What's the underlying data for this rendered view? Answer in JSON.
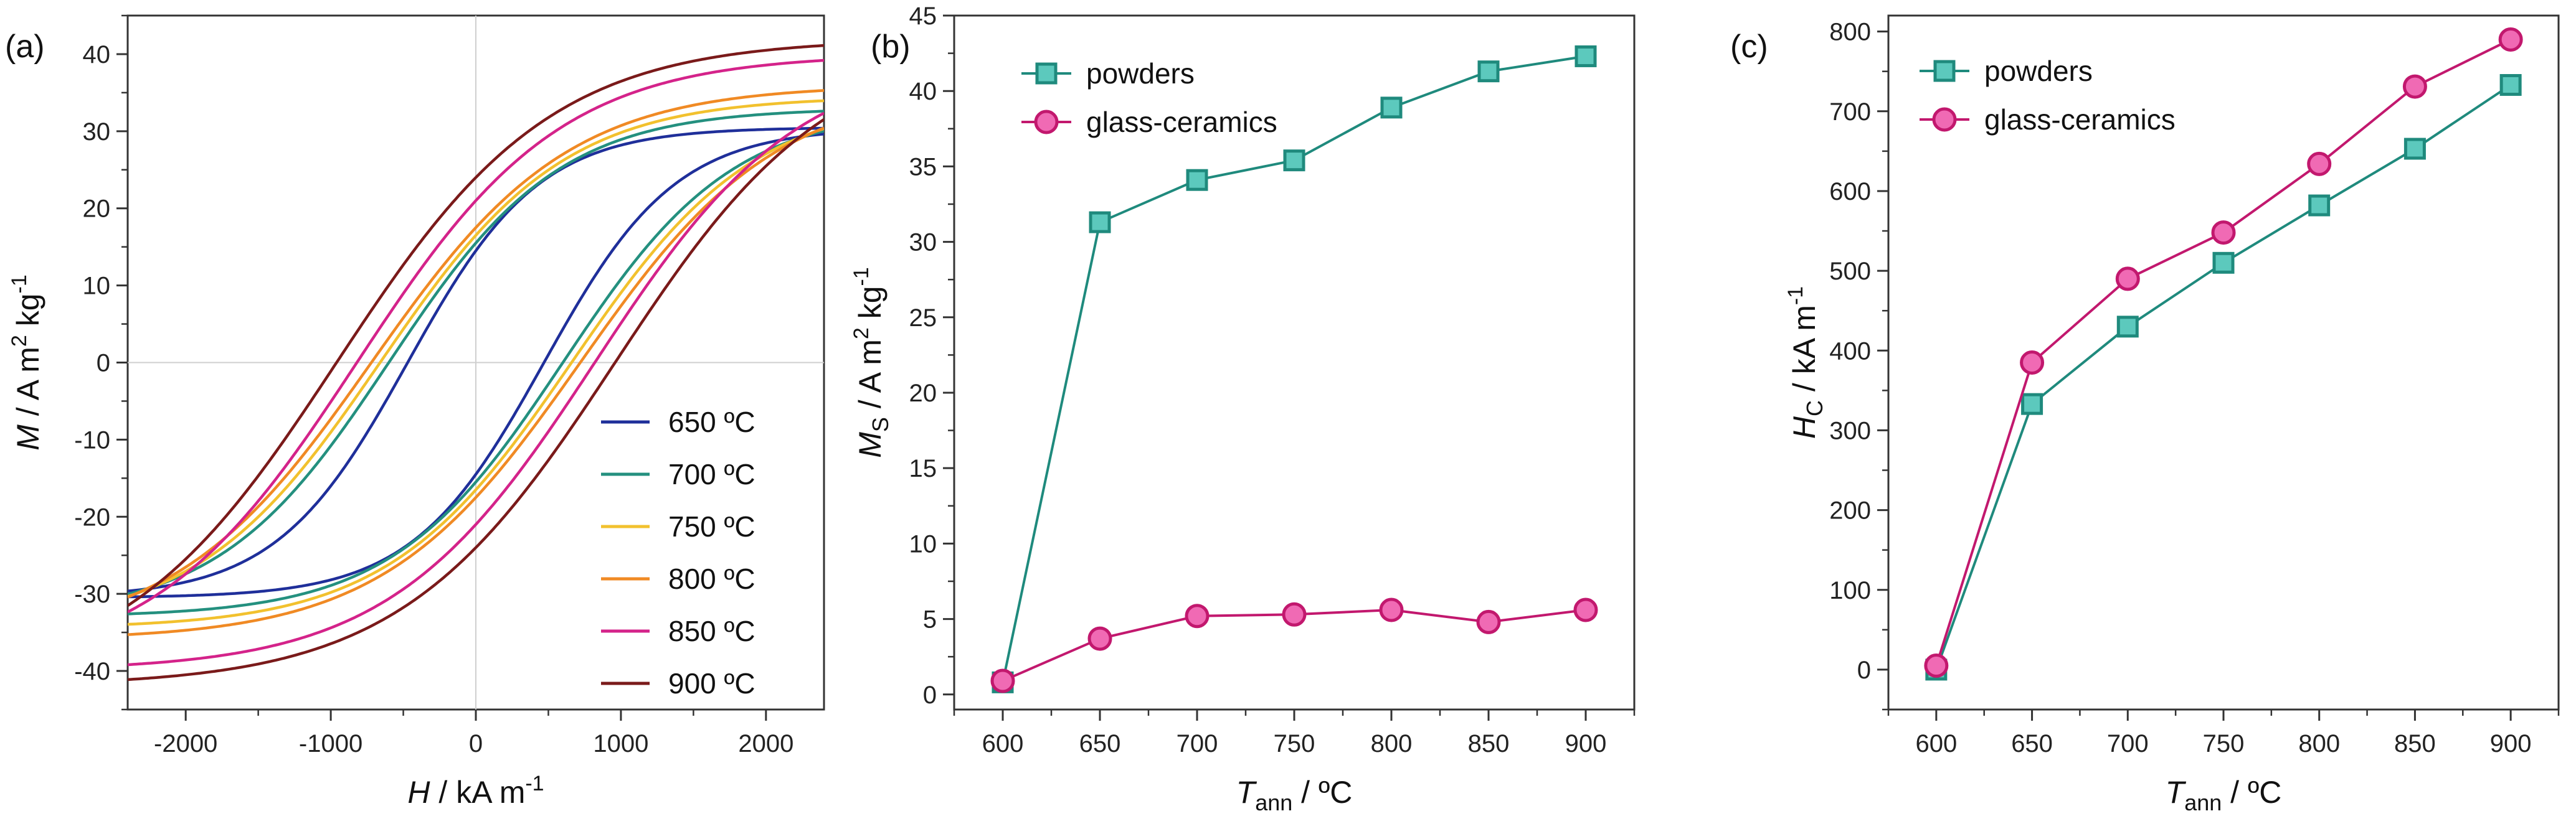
{
  "chart_data": [
    {
      "panel": "(a)",
      "type": "line",
      "title": "",
      "xlabel": {
        "main": "H",
        "sep": " / kA m",
        "sup": "-1"
      },
      "ylabel": {
        "main": "M",
        "sep": " / A m",
        "sup1": "2",
        "mid": " kg",
        "sup2": "-1"
      },
      "xlim": [
        -2400,
        2400
      ],
      "ylim": [
        -45,
        45
      ],
      "xticks": [
        -2000,
        -1000,
        0,
        1000,
        2000
      ],
      "yticks": [
        -40,
        -30,
        -20,
        -10,
        0,
        10,
        20,
        30,
        40
      ],
      "legend_position": "bottom-right",
      "series": [
        {
          "name": "650 ºC",
          "color": "#1f2f9a",
          "Ms": 30.5,
          "Mr": 14.5,
          "Hc": 470
        },
        {
          "name": "700 ºC",
          "color": "#24907f",
          "Ms": 33.0,
          "Mr": 15.5,
          "Hc": 600
        },
        {
          "name": "750 ºC",
          "color": "#f2c12e",
          "Ms": 34.5,
          "Mr": 16.5,
          "Hc": 660
        },
        {
          "name": "800 ºC",
          "color": "#f08a24",
          "Ms": 36.0,
          "Mr": 17.5,
          "Hc": 720
        },
        {
          "name": "850 ºC",
          "color": "#d4238a",
          "Ms": 40.0,
          "Mr": 21.0,
          "Hc": 820
        },
        {
          "name": "900 ºC",
          "color": "#7a1a1a",
          "Ms": 42.0,
          "Mr": 24.0,
          "Hc": 960
        }
      ]
    },
    {
      "panel": "(b)",
      "type": "line",
      "title": "",
      "xlabel": {
        "main": "T",
        "sub": "ann",
        "sep": " / ºC"
      },
      "ylabel": {
        "main": "M",
        "sub": "S",
        "sep": " / A m",
        "sup1": "2",
        "mid": " kg",
        "sup2": "-1"
      },
      "xlim": [
        575,
        925
      ],
      "ylim": [
        -1,
        45
      ],
      "xticks": [
        600,
        650,
        700,
        750,
        800,
        850,
        900
      ],
      "yticks": [
        0,
        5,
        10,
        15,
        20,
        25,
        30,
        35,
        40,
        45
      ],
      "legend_position": "top-left",
      "x": [
        600,
        650,
        700,
        750,
        800,
        850,
        900
      ],
      "series": [
        {
          "name": "powders",
          "marker": "square",
          "color": "#1f8a7d",
          "fill": "#5cc9bd",
          "values": [
            0.8,
            31.3,
            34.1,
            35.4,
            38.9,
            41.3,
            42.3
          ]
        },
        {
          "name": "glass-ceramics",
          "marker": "circle",
          "color": "#c2186e",
          "fill": "#f06ab4",
          "values": [
            0.9,
            3.7,
            5.2,
            5.3,
            5.6,
            4.8,
            5.6
          ]
        }
      ]
    },
    {
      "panel": "(c)",
      "type": "line",
      "title": "",
      "xlabel": {
        "main": "T",
        "sub": "ann",
        "sep": " / ºC"
      },
      "ylabel": {
        "main": "H",
        "sub": "C",
        "sep": " / kA m",
        "sup1": "-1"
      },
      "xlim": [
        575,
        925
      ],
      "ylim": [
        -50,
        820
      ],
      "xticks": [
        600,
        650,
        700,
        750,
        800,
        850,
        900
      ],
      "yticks": [
        0,
        100,
        200,
        300,
        400,
        500,
        600,
        700,
        800
      ],
      "legend_position": "top-left",
      "x": [
        600,
        650,
        700,
        750,
        800,
        850,
        900
      ],
      "series": [
        {
          "name": "powders",
          "marker": "square",
          "color": "#1f8a7d",
          "fill": "#5cc9bd",
          "values": [
            0,
            333,
            430,
            510,
            582,
            653,
            733
          ]
        },
        {
          "name": "glass-ceramics",
          "marker": "circle",
          "color": "#c2186e",
          "fill": "#f06ab4",
          "values": [
            5,
            385,
            490,
            548,
            634,
            731,
            790
          ]
        }
      ]
    }
  ]
}
